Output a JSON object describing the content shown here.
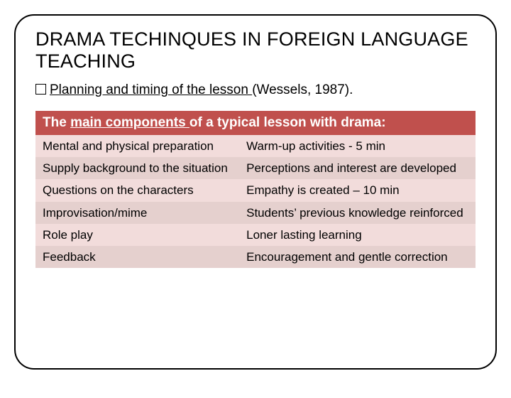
{
  "title": "DRAMA TECHINQUES IN FOREIGN LANGUAGE TEACHING",
  "bullet": {
    "underlined": "Planning and timing of the lesson ",
    "rest": "(Wessels, 1987)."
  },
  "table": {
    "header": {
      "pre": "The ",
      "underlined": "main components ",
      "post": "of a typical lesson with drama:"
    },
    "rows": [
      {
        "left": "Mental and physical preparation",
        "right": "Warm-up activities - 5 min"
      },
      {
        "left": "Supply background to the situation",
        "right": "Perceptions and interest are developed"
      },
      {
        "left": "Questions on the characters",
        "right": "Empathy is created – 10 min"
      },
      {
        "left": "Improvisation/mime",
        "right": "Students’ previous knowledge reinforced"
      },
      {
        "left": "Role play",
        "right": "Loner lasting learning"
      },
      {
        "left": "Feedback",
        "right": "Encouragement and gentle correction"
      }
    ],
    "band_colors": {
      "a": "#f2dcdb",
      "b": "#e5d0ce"
    },
    "header_bg": "#c0504d"
  }
}
